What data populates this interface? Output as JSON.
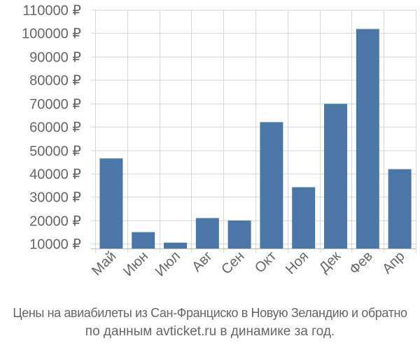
{
  "chart_data": {
    "type": "bar",
    "categories": [
      "Май",
      "Июн",
      "Июл",
      "Авг",
      "Сен",
      "Окт",
      "Ноя",
      "Дек",
      "Фев",
      "Апр"
    ],
    "values": [
      46500,
      15000,
      10500,
      21000,
      20000,
      62000,
      34200,
      69800,
      101800,
      41900
    ],
    "ylim": [
      8000,
      110000
    ],
    "yticks": [
      10000,
      20000,
      30000,
      40000,
      50000,
      60000,
      70000,
      80000,
      90000,
      100000,
      110000
    ],
    "ytick_labels": [
      "10000 ₽",
      "20000 ₽",
      "30000 ₽",
      "40000 ₽",
      "50000 ₽",
      "60000 ₽",
      "70000 ₽",
      "80000 ₽",
      "90000 ₽",
      "100000 ₽",
      "110000 ₽"
    ],
    "grid": true,
    "bar_color": "#4a76a8",
    "grid_color": "#d9d9d9",
    "axis_color": "#bbbbbb",
    "text_color": "#666666"
  },
  "caption": {
    "line1": "Цены на авиабилеты из Сан-Франциско в Новую Зеландию и обратно",
    "line2": "по данным avticket.ru в динамике за год."
  }
}
